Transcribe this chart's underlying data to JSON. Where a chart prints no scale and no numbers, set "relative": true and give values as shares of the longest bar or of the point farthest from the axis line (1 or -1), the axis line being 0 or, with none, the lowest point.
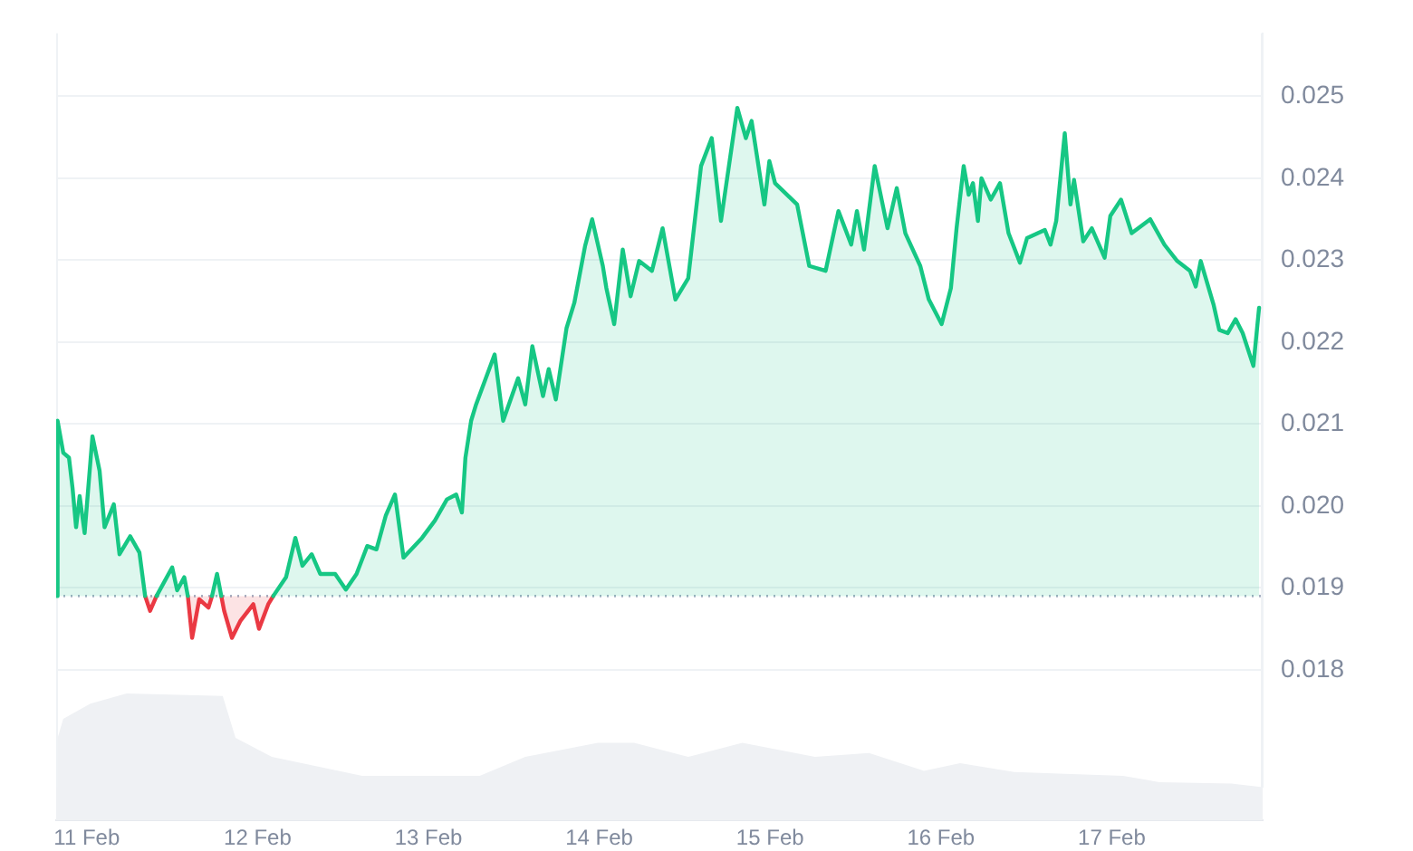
{
  "chart_data": [
    {
      "type": "area",
      "xlim": [
        "--02-10T19:42",
        "--02-17T21:12"
      ],
      "ylim": [
        0.01657,
        0.02577
      ],
      "yticks": [
        0.018,
        0.019,
        {
          "value": 0.02,
          "label": "0.020"
        },
        0.021,
        0.022,
        0.023,
        0.024,
        0.025
      ],
      "grid": "y",
      "legend": false,
      "marker": "none",
      "line_style": "solid",
      "tick_labels": "y",
      "ref_lines": [
        {
          "axis": "y",
          "value": 0.0189,
          "color": "#a6b0c3",
          "line_style": "dotted"
        }
      ],
      "x": [
        "--02-10T19:42",
        "--02-10T19:54",
        "--02-10T20:42",
        "--02-10T21:30",
        "--02-10T22:00",
        "--02-10T22:30",
        "--02-10T23:00",
        "--02-10T23:42",
        "--02-11T00:48",
        "--02-11T01:48",
        "--02-11T02:30",
        "--02-11T03:48",
        "--02-11T04:36",
        "--02-11T06:06",
        "--02-11T07:24",
        "--02-11T08:12",
        "--02-11T08:54",
        "--02-11T09:48",
        "--02-11T12:00",
        "--02-11T12:42",
        "--02-11T13:42",
        "--02-11T14:12",
        "--02-11T14:48",
        "--02-11T15:48",
        "--02-11T17:06",
        "--02-11T17:36",
        "--02-11T18:18",
        "--02-11T18:54",
        "--02-11T19:18",
        "--02-11T20:24",
        "--02-11T21:36",
        "--02-11T23:24",
        "--02-12T00:12",
        "--02-12T01:30",
        "--02-12T02:12",
        "--02-12T04:00",
        "--02-12T05:18",
        "--02-12T06:18",
        "--02-12T07:36",
        "--02-12T08:48",
        "--02-12T10:54",
        "--02-12T12:24",
        "--02-12T13:54",
        "--02-12T15:24",
        "--02-12T16:42",
        "--02-12T18:00",
        "--02-12T19:18",
        "--02-12T20:30",
        "--02-12T21:36",
        "--02-12T23:06",
        "--02-13T00:54",
        "--02-13T02:36",
        "--02-13T03:54",
        "--02-13T04:42",
        "--02-13T05:12",
        "--02-13T06:00",
        "--02-13T06:42",
        "--02-13T09:18",
        "--02-13T10:30",
        "--02-13T12:36",
        "--02-13T13:36",
        "--02-13T14:36",
        "--02-13T16:06",
        "--02-13T16:54",
        "--02-13T17:54",
        "--02-13T19:24",
        "--02-13T20:30",
        "--02-13T22:00",
        "--02-13T23:00",
        "--02-14T00:30",
        "--02-14T01:00",
        "--02-14T02:06",
        "--02-14T03:18",
        "--02-14T04:24",
        "--02-14T05:36",
        "--02-14T07:24",
        "--02-14T08:54",
        "--02-14T10:42",
        "--02-14T12:30",
        "--02-14T14:18",
        "--02-14T15:48",
        "--02-14T17:06",
        "--02-14T19:24",
        "--02-14T20:36",
        "--02-14T21:24",
        "--02-14T23:12",
        "--02-14T23:54",
        "--02-15T00:42",
        "--02-15T03:48",
        "--02-15T05:30",
        "--02-15T07:48",
        "--02-15T09:36",
        "--02-15T11:24",
        "--02-15T12:12",
        "--02-15T13:12",
        "--02-15T14:42",
        "--02-15T16:30",
        "--02-15T17:48",
        "--02-15T19:00",
        "--02-15T21:06",
        "--02-15T22:18",
        "--02-16T00:06",
        "--02-16T01:24",
        "--02-16T02:12",
        "--02-16T03:12",
        "--02-16T03:54",
        "--02-16T04:30",
        "--02-16T05:12",
        "--02-16T05:42",
        "--02-16T07:00",
        "--02-16T08:18",
        "--02-16T09:30",
        "--02-16T11:06",
        "--02-16T12:06",
        "--02-16T14:36",
        "--02-16T15:24",
        "--02-16T16:12",
        "--02-16T17:24",
        "--02-16T18:12",
        "--02-16T18:42",
        "--02-16T20:00",
        "--02-16T21:12",
        "--02-16T23:00",
        "--02-16T23:48",
        "--02-17T01:18",
        "--02-17T02:48",
        "--02-17T05:24",
        "--02-17T07:24",
        "--02-17T09:12",
        "--02-17T11:00",
        "--02-17T11:48",
        "--02-17T12:30",
        "--02-17T14:18",
        "--02-17T15:06",
        "--02-17T16:18",
        "--02-17T17:24",
        "--02-17T18:24",
        "--02-17T19:54",
        "--02-17T20:42"
      ],
      "series": [
        {
          "color": "#16c784",
          "values": [
            0.0189,
            0.02104,
            0.02065,
            0.02059,
            0.02022,
            0.01974,
            0.02012,
            0.01967,
            0.02085,
            0.02043,
            0.01974,
            0.02002,
            0.01941,
            0.01963,
            0.01943,
            0.0189,
            null,
            0.0189,
            0.01925,
            0.01897,
            0.01913,
            0.0189,
            null,
            null,
            null,
            0.0189,
            0.01917,
            0.0189,
            null,
            null,
            null,
            null,
            null,
            null,
            0.0189,
            0.01913,
            0.01961,
            0.01927,
            0.01941,
            0.01917,
            0.01917,
            0.01898,
            0.01917,
            0.01951,
            0.01947,
            0.01988,
            0.02014,
            0.01937,
            0.01947,
            0.01961,
            0.01982,
            0.02008,
            0.02014,
            0.01992,
            0.02059,
            0.02104,
            0.02124,
            0.02185,
            0.02104,
            0.02156,
            0.02124,
            0.02195,
            0.02134,
            0.02167,
            0.0213,
            0.02217,
            0.02248,
            0.02317,
            0.0235,
            0.02293,
            0.02266,
            0.02222,
            0.02313,
            0.02256,
            0.02299,
            0.02287,
            0.02339,
            0.02252,
            0.02278,
            0.02415,
            0.02449,
            0.02348,
            0.02486,
            0.02449,
            0.0247,
            0.02368,
            0.02421,
            0.02394,
            0.02368,
            0.02293,
            0.02287,
            0.0236,
            0.02319,
            0.0236,
            0.02313,
            0.02415,
            0.02339,
            0.02388,
            0.02333,
            0.02293,
            0.02252,
            0.02222,
            0.02266,
            0.02339,
            0.02415,
            0.0238,
            0.02394,
            0.02348,
            0.024,
            0.02374,
            0.02394,
            0.02333,
            0.02297,
            0.02327,
            0.02337,
            0.02319,
            0.02348,
            0.02455,
            0.02368,
            0.02398,
            0.02323,
            0.02339,
            0.02303,
            0.02354,
            0.02374,
            0.02333,
            0.0235,
            0.02319,
            0.02299,
            0.02287,
            0.02268,
            0.02299,
            0.02246,
            0.02215,
            0.02211,
            0.02228,
            0.02211,
            0.02171,
            0.02242
          ]
        },
        {
          "color": "#ea3943",
          "values": [
            null,
            null,
            null,
            null,
            null,
            null,
            null,
            null,
            null,
            null,
            null,
            null,
            null,
            null,
            null,
            0.0189,
            0.01872,
            0.0189,
            null,
            null,
            null,
            0.0189,
            0.01839,
            0.01886,
            0.01876,
            0.0189,
            null,
            0.0189,
            0.01872,
            0.01839,
            0.0186,
            0.0188,
            0.0185,
            0.0188,
            0.0189,
            null,
            null,
            null,
            null,
            null,
            null,
            null,
            null,
            null,
            null,
            null,
            null,
            null,
            null,
            null,
            null,
            null,
            null,
            null,
            null,
            null,
            null,
            null,
            null,
            null,
            null,
            null,
            null,
            null,
            null,
            null,
            null,
            null,
            null,
            null,
            null,
            null,
            null,
            null,
            null,
            null,
            null,
            null,
            null,
            null,
            null,
            null,
            null,
            null,
            null,
            null,
            null,
            null,
            null,
            null,
            null,
            null,
            null,
            null,
            null,
            null,
            null,
            null,
            null,
            null,
            null,
            null,
            null,
            null,
            null,
            null,
            null,
            null,
            null,
            null,
            null,
            null,
            null,
            null,
            null,
            null,
            null,
            null,
            null,
            null,
            null,
            null,
            null,
            null,
            null,
            null,
            null,
            null,
            null,
            null,
            null,
            null,
            null,
            null,
            null,
            null,
            null,
            null,
            null
          ]
        }
      ]
    },
    {
      "type": "area",
      "relative": true,
      "xlim": [
        "--02-10T19:42",
        "--02-17T21:12"
      ],
      "xticks": [
        {
          "value": "--02-11",
          "label": "11 Feb"
        },
        {
          "value": "--02-12",
          "label": "12 Feb"
        },
        {
          "value": "--02-13",
          "label": "13 Feb"
        },
        {
          "value": "--02-14",
          "label": "14 Feb"
        },
        {
          "value": "--02-15",
          "label": "15 Feb"
        },
        {
          "value": "--02-16",
          "label": "16 Feb"
        },
        {
          "value": "--02-17",
          "label": "17 Feb"
        }
      ],
      "legend": false,
      "marker": "none",
      "tick_labels": "x",
      "x": [
        "--02-10T19:42",
        "--02-10T20:42",
        "--02-11T00:30",
        "--02-11T05:36",
        "--02-11T19:06",
        "--02-11T20:54",
        "--02-12T02:00",
        "--02-12T14:42",
        "--02-13T07:12",
        "--02-13T13:36",
        "--02-13T23:48",
        "--02-14T04:54",
        "--02-14T12:30",
        "--02-14T20:06",
        "--02-15T06:18",
        "--02-15T13:54",
        "--02-15T21:36",
        "--02-16T02:42",
        "--02-16T10:18",
        "--02-17T01:36",
        "--02-17T06:42",
        "--02-17T16:48",
        "--02-17T21:12"
      ],
      "series": [
        {
          "color": "#eff1f4",
          "values": [
            0.61,
            0.8,
            0.92,
            1.0,
            0.98,
            0.65,
            0.5,
            0.35,
            0.35,
            0.5,
            0.61,
            0.61,
            0.5,
            0.61,
            0.5,
            0.53,
            0.39,
            0.45,
            0.38,
            0.35,
            0.3,
            0.29,
            0.26
          ]
        }
      ]
    }
  ]
}
